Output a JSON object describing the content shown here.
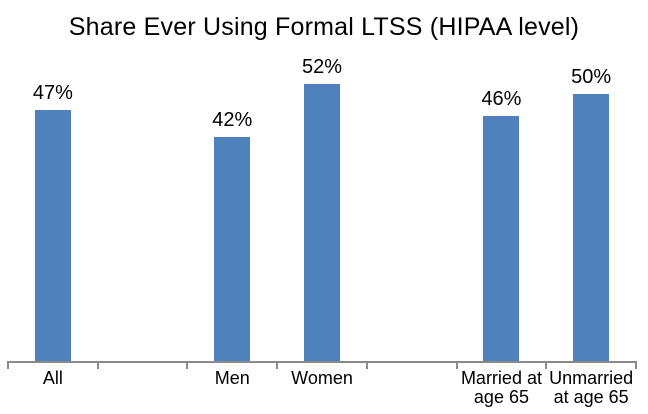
{
  "chart_data": {
    "type": "bar",
    "title": "Share Ever Using Formal LTSS (HIPAA level)",
    "categories": [
      "All",
      "",
      "Men",
      "Women",
      "",
      "Married at\nage 65",
      "Unmarried\nat age 65"
    ],
    "values": [
      47,
      null,
      42,
      52,
      null,
      46,
      50
    ],
    "data_labels": [
      "47%",
      "",
      "42%",
      "52%",
      "",
      "46%",
      "50%"
    ],
    "xlabel": "",
    "ylabel": "",
    "ylim": [
      0,
      60
    ],
    "grid": false,
    "legend": "none",
    "colors": {
      "bar": "#4F81BD",
      "axis": "#8A8A8A",
      "text": "#000000",
      "background": "#FFFFFF"
    }
  }
}
